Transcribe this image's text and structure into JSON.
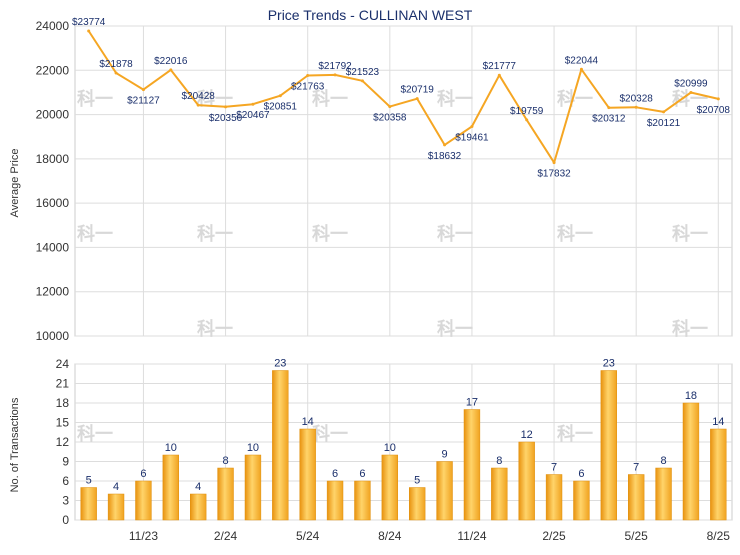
{
  "chart_data": [
    {
      "type": "line",
      "title": "Price Trends - CULLINAN WEST",
      "ylabel": "Average Price",
      "ylim": [
        10000,
        24000
      ],
      "yticks": [
        10000,
        12000,
        14000,
        16000,
        18000,
        20000,
        22000,
        24000
      ],
      "grid": true,
      "line_color": "#f5a623",
      "series": [
        {
          "values": [
            23774,
            21878,
            21127,
            22016,
            20428,
            20350,
            20467,
            20851,
            21763,
            21792,
            21523,
            20358,
            20719,
            18632,
            19461,
            21777,
            19759,
            17832,
            22044,
            20312,
            20328,
            20121,
            20999,
            20708
          ],
          "labels": [
            "$23774",
            "$21878",
            "$21127",
            "$22016",
            "$20428",
            "$20350",
            "$20467",
            "$20851",
            "$21763",
            "$21792",
            "$21523",
            "$20358",
            "$20719",
            "$18632",
            "$19461",
            "$21777",
            "$19759",
            "$17832",
            "$22044",
            "$20312",
            "$20328",
            "$20121",
            "$20999",
            "$20708"
          ]
        }
      ]
    },
    {
      "type": "bar",
      "ylabel": "No. of Transactions",
      "ylim": [
        0,
        24
      ],
      "yticks": [
        0,
        3,
        6,
        9,
        12,
        15,
        18,
        21,
        24
      ],
      "grid": true,
      "bar_color": "#f5a623",
      "x_tick_labels": [
        "11/23",
        "2/24",
        "5/24",
        "8/24",
        "11/24",
        "2/25",
        "5/25",
        "8/25"
      ],
      "values": [
        5,
        4,
        6,
        10,
        4,
        8,
        10,
        23,
        14,
        6,
        6,
        10,
        5,
        9,
        17,
        8,
        12,
        7,
        6,
        23,
        7,
        8,
        18,
        14
      ]
    }
  ],
  "watermark": "科一"
}
